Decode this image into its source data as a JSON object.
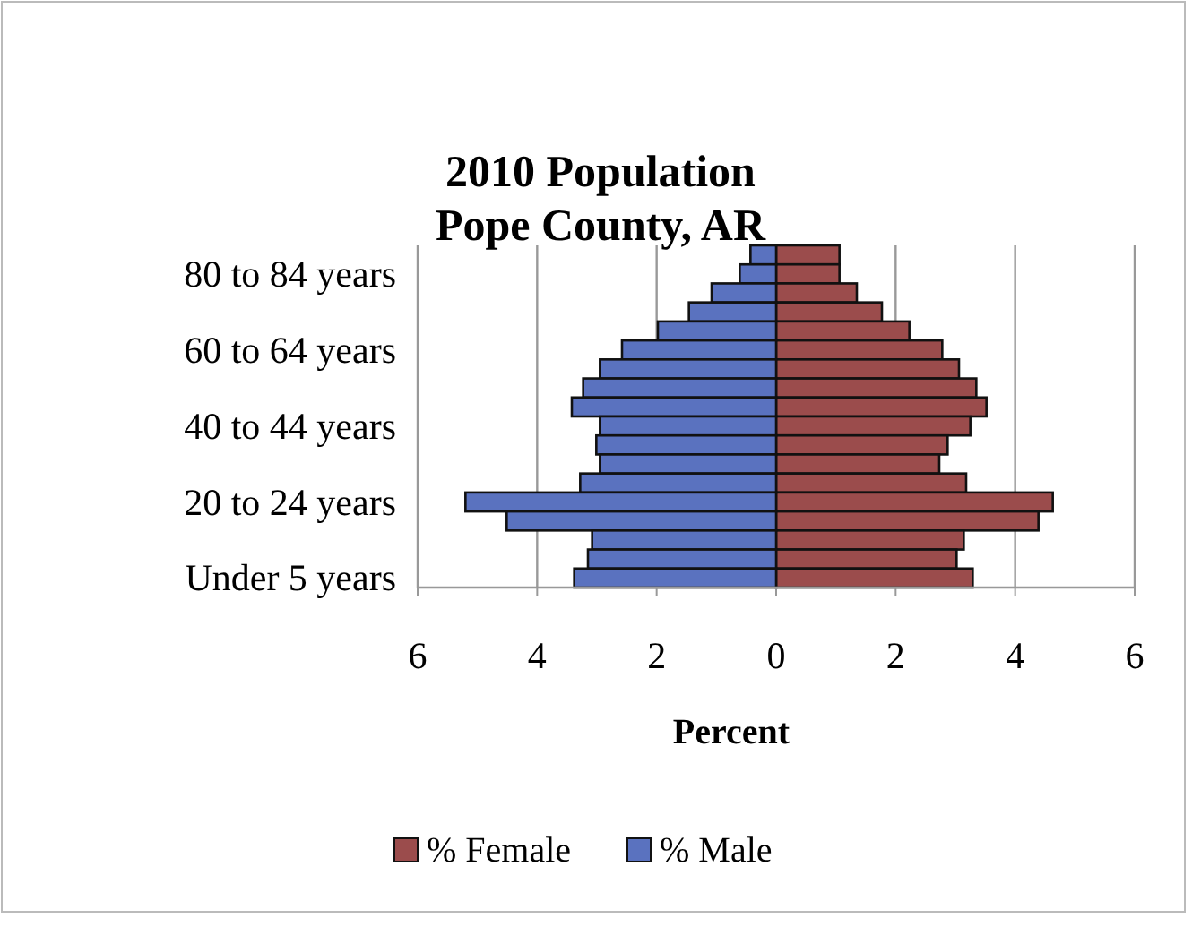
{
  "chart_data": {
    "type": "bar",
    "orientation": "horizontal",
    "title": "2010 Population\nPope County, AR",
    "xlabel": "Percent",
    "categories": [
      null,
      "80 to 84 years",
      null,
      null,
      null,
      "60 to 64 years",
      null,
      null,
      null,
      "40 to 44 years",
      null,
      null,
      null,
      "20 to 24 years",
      null,
      null,
      null,
      "Under 5 years"
    ],
    "series": [
      {
        "name": "% Female",
        "color": "#9b4c4c",
        "values": [
          1.06,
          1.06,
          1.35,
          1.77,
          2.23,
          2.78,
          3.06,
          3.35,
          3.52,
          3.25,
          2.87,
          2.73,
          3.18,
          4.63,
          4.39,
          3.14,
          3.02,
          3.29
        ]
      },
      {
        "name": "% Male",
        "color": "#5a72bf",
        "values": [
          -0.43,
          -0.61,
          -1.08,
          -1.46,
          -1.98,
          -2.58,
          -2.95,
          -3.23,
          -3.42,
          -2.95,
          -3.01,
          -2.95,
          -3.28,
          -5.2,
          -4.51,
          -3.08,
          -3.15,
          -3.38
        ]
      }
    ],
    "xlim": [
      -6,
      6
    ],
    "xticks": [
      {
        "value": -6,
        "label": "6"
      },
      {
        "value": -4,
        "label": "4"
      },
      {
        "value": -2,
        "label": "2"
      },
      0,
      2,
      4,
      6
    ],
    "stacked": true,
    "grid": "x",
    "legend": "bottom"
  }
}
